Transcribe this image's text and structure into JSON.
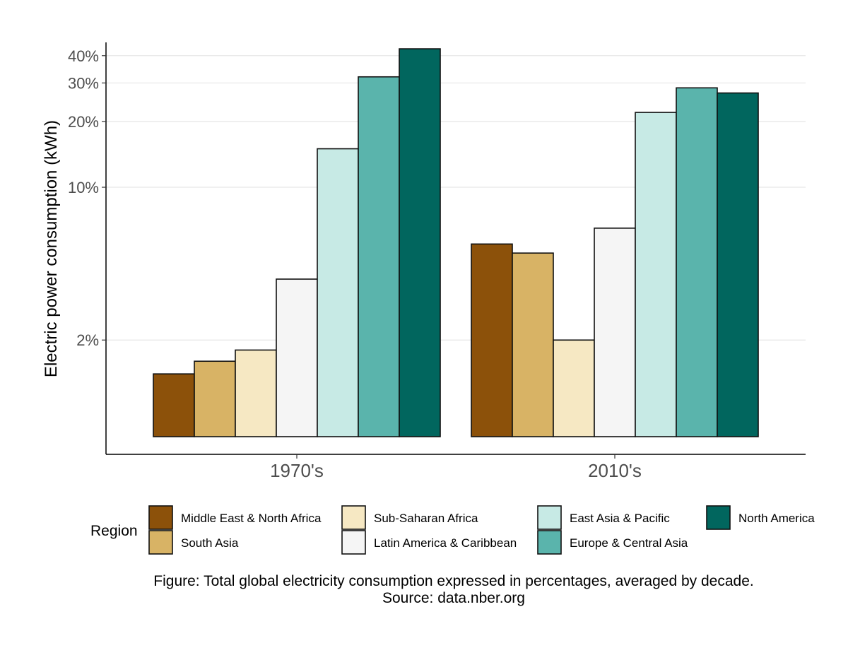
{
  "chart_data": {
    "type": "bar",
    "ylabel": "Electric power consumption (kWh)",
    "xlabel": "",
    "y_scale": "log",
    "ylim": [
      0.6,
      46
    ],
    "y_ticks": [
      {
        "value": 2,
        "label": "2%"
      },
      {
        "value": 10,
        "label": "10%"
      },
      {
        "value": 20,
        "label": "20%"
      },
      {
        "value": 30,
        "label": "30%"
      },
      {
        "value": 40,
        "label": "40%"
      }
    ],
    "grid": "horizontal major",
    "categories": [
      "1970's",
      "2010's"
    ],
    "legend_title": "Region",
    "legend_position": "bottom",
    "series": [
      {
        "name": "Middle East & North Africa",
        "color": "#8c510a",
        "values": [
          1.4,
          5.5
        ]
      },
      {
        "name": "South Asia",
        "color": "#d8b365",
        "values": [
          1.6,
          5.0
        ]
      },
      {
        "name": "Sub-Saharan Africa",
        "color": "#f6e8c3",
        "values": [
          1.8,
          2.0
        ]
      },
      {
        "name": "Latin America & Caribbean",
        "color": "#f5f5f5",
        "values": [
          3.8,
          6.5
        ]
      },
      {
        "name": "East Asia & Pacific",
        "color": "#c7eae5",
        "values": [
          15.0,
          22.0
        ]
      },
      {
        "name": "Europe & Central Asia",
        "color": "#5ab4ac",
        "values": [
          32.0,
          28.5
        ]
      },
      {
        "name": "North America",
        "color": "#01665e",
        "values": [
          43.0,
          27.0
        ]
      }
    ],
    "caption_lines": [
      "Figure: Total global electricity consumption expressed in percentages, averaged by decade.",
      "Source: data.nber.org"
    ]
  }
}
